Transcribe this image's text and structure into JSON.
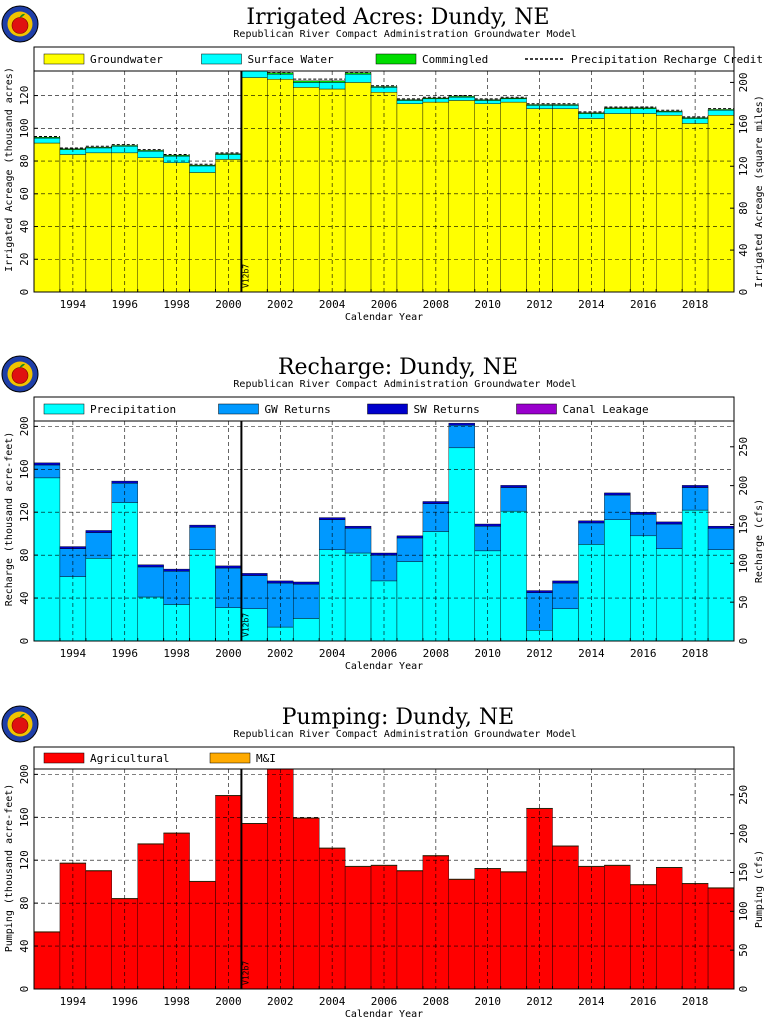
{
  "chart_data": [
    {
      "type": "bar",
      "stacked": true,
      "title": "Irrigated Acres: Dundy, NE",
      "subtitle": "Republican River Compact Administration Groundwater Model",
      "xlabel": "Calendar Year",
      "ylabel": "Irrigated Acreage (thousand acres)",
      "ylabel_right": "Irrigated Acreage (square miles)",
      "ylim": [
        0,
        135
      ],
      "y_ticks": [
        0,
        20.0,
        40.0,
        60.0,
        80.0,
        100,
        120
      ],
      "y_ticks_right": [
        0,
        40.0,
        80.0,
        120,
        160,
        200
      ],
      "ylim_right": [
        0,
        210.9
      ],
      "x": [
        1993,
        1994,
        1995,
        1996,
        1997,
        1998,
        1999,
        2000,
        2001,
        2002,
        2003,
        2004,
        2005,
        2006,
        2007,
        2008,
        2009,
        2010,
        2011,
        2012,
        2013,
        2014,
        2015,
        2016,
        2017,
        2018,
        2019
      ],
      "x_ticks": [
        1994,
        1996,
        1998,
        2000,
        2002,
        2004,
        2006,
        2008,
        2010,
        2012,
        2014,
        2016,
        2018
      ],
      "xlim": [
        1992.5,
        2019.5
      ],
      "grid": true,
      "legend_position": "top",
      "vline": {
        "x": 2000.5,
        "label": "V12b7"
      },
      "series": [
        {
          "name": "Groundwater",
          "color": "#ffff00",
          "values": [
            91,
            84,
            85,
            85,
            82,
            79,
            73,
            81,
            131,
            130,
            125,
            124,
            128,
            122,
            115,
            116,
            117,
            115,
            116,
            112,
            112,
            106,
            109,
            109,
            108,
            103,
            108
          ]
        },
        {
          "name": "Surface Water",
          "color": "#00ffff",
          "values": [
            3,
            3,
            3,
            4,
            4,
            4,
            4,
            3,
            4,
            3,
            3,
            4,
            5,
            3,
            2,
            2,
            2,
            2,
            2,
            2,
            2,
            3,
            3,
            3,
            2,
            3,
            3
          ]
        },
        {
          "name": "Commingled",
          "color": "#00dd00",
          "values": [
            0.5,
            0.5,
            0.5,
            0.5,
            0.5,
            0.5,
            0.5,
            0.5,
            1,
            1,
            1,
            1,
            1,
            0.5,
            0.5,
            0.5,
            0.5,
            0.5,
            0.5,
            0.5,
            0.5,
            0.5,
            0.5,
            0.5,
            0.5,
            0.5,
            0.5
          ]
        }
      ],
      "line_series": {
        "name": "Precipitation Recharge Credit Acreage",
        "style": "dashed",
        "values": [
          95,
          88,
          89,
          90,
          87,
          84,
          78,
          85,
          136,
          134,
          130,
          130,
          134,
          126,
          118,
          119,
          120,
          118,
          119,
          115,
          115,
          110,
          113,
          113,
          111,
          107,
          112
        ]
      }
    },
    {
      "type": "bar",
      "stacked": true,
      "title": "Recharge: Dundy, NE",
      "subtitle": "Republican River Compact Administration Groundwater Model",
      "xlabel": "Calendar Year",
      "ylabel": "Recharge (thousand acre-feet)",
      "ylabel_right": "Recharge (cfs)",
      "ylim": [
        0,
        205
      ],
      "y_ticks": [
        0,
        40.0,
        80.0,
        120,
        160,
        200
      ],
      "y_ticks_right": [
        0,
        50.0,
        100,
        150,
        200,
        250
      ],
      "ylim_right": [
        0,
        283.2
      ],
      "x": [
        1993,
        1994,
        1995,
        1996,
        1997,
        1998,
        1999,
        2000,
        2001,
        2002,
        2003,
        2004,
        2005,
        2006,
        2007,
        2008,
        2009,
        2010,
        2011,
        2012,
        2013,
        2014,
        2015,
        2016,
        2017,
        2018,
        2019
      ],
      "x_ticks": [
        1994,
        1996,
        1998,
        2000,
        2002,
        2004,
        2006,
        2008,
        2010,
        2012,
        2014,
        2016,
        2018
      ],
      "xlim": [
        1992.5,
        2019.5
      ],
      "grid": true,
      "legend_position": "top",
      "vline": {
        "x": 2000.5,
        "label": "V12b7"
      },
      "series": [
        {
          "name": "Precipitation",
          "color": "#00ffff",
          "values": [
            152,
            60,
            77,
            129,
            41,
            34,
            85,
            31,
            30,
            13,
            21,
            85,
            82,
            56,
            74,
            102,
            180,
            84,
            121,
            10,
            30,
            90,
            113,
            98,
            86,
            122,
            85
          ]
        },
        {
          "name": "GW Returns",
          "color": "#0099ff",
          "values": [
            12,
            26,
            24,
            18,
            28,
            31,
            21,
            37,
            31,
            41,
            32,
            28,
            23,
            24,
            22,
            26,
            21,
            23,
            22,
            35,
            24,
            20,
            23,
            20,
            23,
            21,
            20
          ]
        },
        {
          "name": "SW Returns",
          "color": "#0000cc",
          "values": [
            2,
            2,
            2,
            2,
            2,
            2,
            2,
            2,
            2,
            2,
            2,
            2,
            2,
            2,
            2,
            2,
            2,
            2,
            2,
            2,
            2,
            2,
            2,
            2,
            2,
            2,
            2
          ]
        },
        {
          "name": "Canal Leakage",
          "color": "#9900cc",
          "values": [
            0,
            0,
            0,
            0,
            0,
            0,
            0,
            0,
            0,
            0,
            0,
            0,
            0,
            0,
            0,
            0,
            0,
            0,
            0,
            0,
            0,
            0,
            0,
            0,
            0,
            0,
            0
          ]
        }
      ]
    },
    {
      "type": "bar",
      "stacked": true,
      "title": "Pumping: Dundy, NE",
      "subtitle": "Republican River Compact Administration Groundwater Model",
      "xlabel": "Calendar Year",
      "ylabel": "Pumping (thousand acre-feet)",
      "ylabel_right": "Pumping (cfs)",
      "ylim": [
        0,
        205
      ],
      "y_ticks": [
        0,
        40.0,
        80.0,
        120,
        160,
        200
      ],
      "y_ticks_right": [
        0,
        50.0,
        100,
        150,
        200,
        250
      ],
      "ylim_right": [
        0,
        283.2
      ],
      "x": [
        1993,
        1994,
        1995,
        1996,
        1997,
        1998,
        1999,
        2000,
        2001,
        2002,
        2003,
        2004,
        2005,
        2006,
        2007,
        2008,
        2009,
        2010,
        2011,
        2012,
        2013,
        2014,
        2015,
        2016,
        2017,
        2018,
        2019
      ],
      "x_ticks": [
        1994,
        1996,
        1998,
        2000,
        2002,
        2004,
        2006,
        2008,
        2010,
        2012,
        2014,
        2016,
        2018
      ],
      "xlim": [
        1992.5,
        2019.5
      ],
      "grid": true,
      "legend_position": "top",
      "vline": {
        "x": 2000.5,
        "label": "V12b7"
      },
      "series": [
        {
          "name": "Agricultural",
          "color": "#ff0000",
          "values": [
            53,
            117,
            110,
            84,
            135,
            145,
            100,
            180,
            154,
            205,
            159,
            131,
            114,
            115,
            110,
            124,
            102,
            112,
            109,
            168,
            133,
            114,
            115,
            97,
            113,
            98,
            94
          ]
        },
        {
          "name": "M&I",
          "color": "#ffaa00",
          "values": [
            0.5,
            0.5,
            0.5,
            0.5,
            0.5,
            0.5,
            0.5,
            0.5,
            0.5,
            0.5,
            0.5,
            0.5,
            0.5,
            0.5,
            0.5,
            0.5,
            0.5,
            0.5,
            0.5,
            0.5,
            0.5,
            0.5,
            0.5,
            0.5,
            0.5,
            0.5,
            0.5
          ]
        }
      ]
    }
  ]
}
